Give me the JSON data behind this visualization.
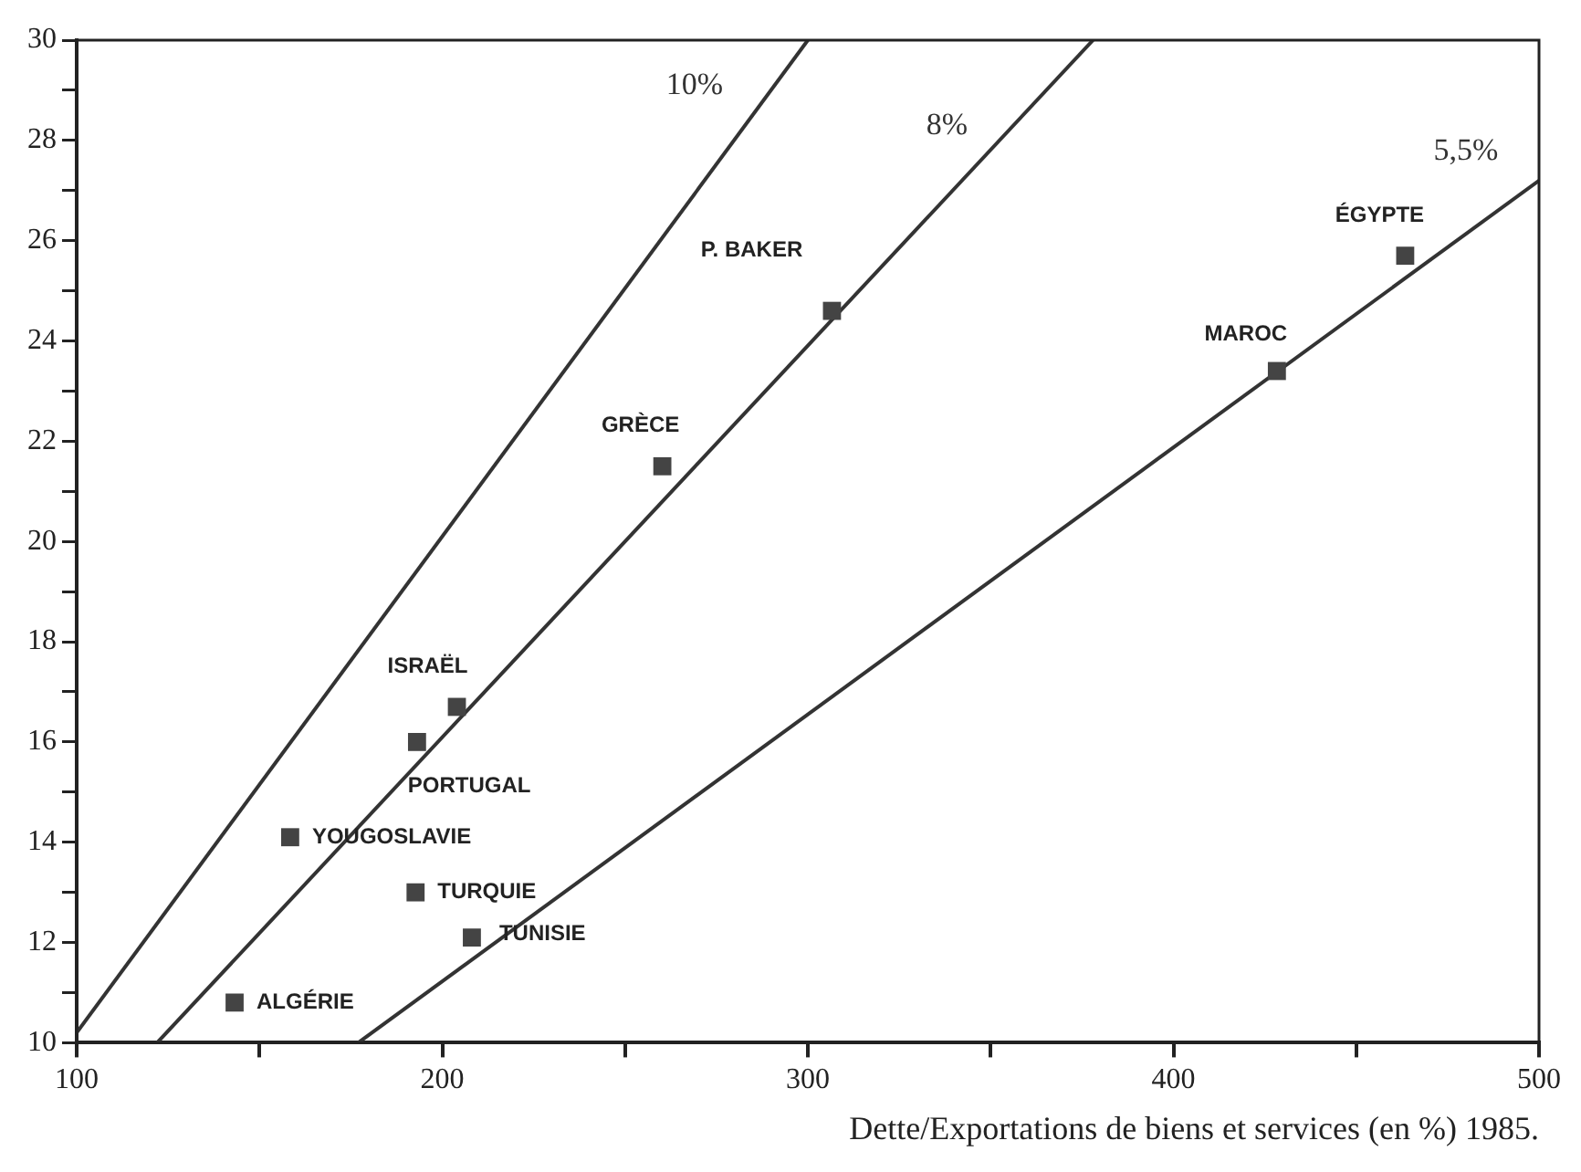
{
  "chart_data": {
    "type": "scatter",
    "xlabel": "Dette/Exportations de biens et services (en %) 1985.",
    "xlim": [
      100,
      500
    ],
    "xticks": [
      100,
      {
        "value": 150,
        "label": null
      },
      200,
      {
        "value": 250,
        "label": null
      },
      300,
      {
        "value": 350,
        "label": null
      },
      400,
      {
        "value": 450,
        "label": null
      },
      500
    ],
    "ylim": [
      10,
      30
    ],
    "yticks": [
      10,
      {
        "value": 11,
        "label": null
      },
      12,
      {
        "value": 13,
        "label": null
      },
      14,
      {
        "value": 15,
        "label": null
      },
      16,
      {
        "value": 17,
        "label": null
      },
      18,
      {
        "value": 19,
        "label": null
      },
      20,
      {
        "value": 21,
        "label": null
      },
      22,
      {
        "value": 23,
        "label": null
      },
      24,
      {
        "value": 25,
        "label": null
      },
      26,
      {
        "value": 27,
        "label": null
      },
      28,
      {
        "value": 29,
        "label": null
      },
      30
    ],
    "grid": false,
    "legend": false,
    "series": [
      {
        "type": "scatter",
        "marker": "square",
        "color": "#444444",
        "x": [
          143.2,
          158.4,
          193.1,
          204.0,
          192.7,
          208.1,
          260.2,
          306.6,
          428.3,
          463.4
        ],
        "values": [
          10.8,
          14.1,
          16.0,
          16.7,
          13.0,
          12.1,
          21.5,
          24.6,
          23.4,
          25.7
        ]
      },
      {
        "type": "line",
        "name": "10%",
        "marker": "none",
        "color": "#333333",
        "x": [
          100,
          300
        ],
        "values": [
          10.2,
          30
        ]
      },
      {
        "type": "line",
        "name": "8%",
        "marker": "none",
        "color": "#333333",
        "x": [
          122,
          378
        ],
        "values": [
          10,
          30
        ]
      },
      {
        "type": "line",
        "name": "5,5%",
        "marker": "none",
        "color": "#333333",
        "x": [
          177,
          500
        ],
        "values": [
          10,
          27.2
        ]
      }
    ],
    "annotations": [
      {
        "text": "ALGÉRIE",
        "x": 143.2,
        "y": 10.8
      },
      {
        "text": "YOUGOSLAVIE",
        "x": 158.4,
        "y": 14.1
      },
      {
        "text": "PORTUGAL",
        "x": 193.1,
        "y": 16.0
      },
      {
        "text": "ISRAËL",
        "x": 204.0,
        "y": 16.7
      },
      {
        "text": "TURQUIE",
        "x": 192.7,
        "y": 13.0
      },
      {
        "text": "TUNISIE",
        "x": 208.1,
        "y": 12.1
      },
      {
        "text": "GRÈCE",
        "x": 260.2,
        "y": 21.5
      },
      {
        "text": "P. BAKER",
        "x": 306.6,
        "y": 24.6
      },
      {
        "text": "MAROC",
        "x": 428.3,
        "y": 23.4
      },
      {
        "text": "ÉGYPTE",
        "x": 463.4,
        "y": 25.7
      }
    ]
  }
}
